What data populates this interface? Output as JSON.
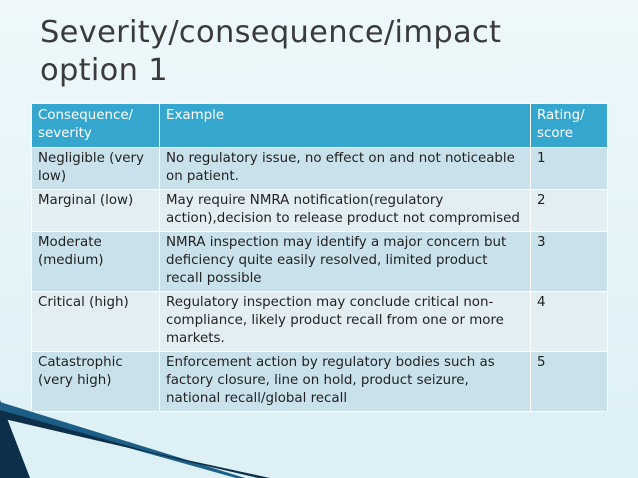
{
  "title": {
    "line1": "Severity/consequence/impact",
    "line2": "option 1"
  },
  "table": {
    "headers": [
      "Consequence/ severity",
      "Example",
      "Rating/ score"
    ],
    "rows": [
      {
        "severity": "Negligible (very low)",
        "example": "No regulatory issue, no effect on and not noticeable on patient.",
        "score": "1"
      },
      {
        "severity": "Marginal (low)",
        "example": "May require NMRA notification(regulatory action),decision to release product not compromised",
        "score": "2"
      },
      {
        "severity": "Moderate (medium)",
        "example": "NMRA inspection may identify a major concern but deficiency quite easily resolved, limited product recall possible",
        "score": "3"
      },
      {
        "severity": "Critical (high)",
        "example": "Regulatory inspection may conclude critical non-compliance, likely product recall from one or more markets.",
        "score": "4"
      },
      {
        "severity": "Catastrophic (very high)",
        "example": "Enforcement action by regulatory bodies such as factory closure, line on hold, product seizure, national recall/global recall",
        "score": "5"
      }
    ]
  },
  "colors": {
    "header_bg": "#35a7ce",
    "row_dark": "#c9e1ea",
    "row_light": "#e3eef3",
    "accent_dark": "#0d2f4a"
  }
}
